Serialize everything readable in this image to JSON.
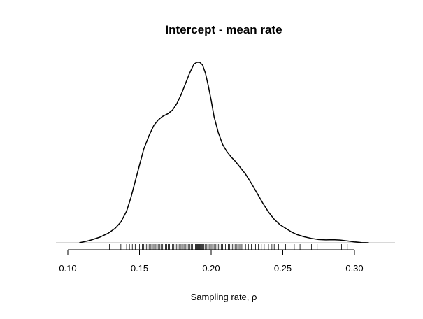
{
  "chart_data": {
    "type": "line",
    "title": "Intercept - mean rate",
    "xlabel": "Sampling rate, ρ",
    "ylabel": "",
    "xlim": [
      0.09,
      0.32
    ],
    "ylim": [
      0,
      1
    ],
    "x_ticks": [
      0.1,
      0.15,
      0.2,
      0.25,
      0.3
    ],
    "x_tick_labels": [
      "0.10",
      "0.15",
      "0.20",
      "0.25",
      "0.30"
    ],
    "grid": false,
    "legend": "none",
    "line_color": "#000000",
    "baseline_color": "#b0b0b0",
    "density": {
      "x": [
        0.108,
        0.115,
        0.122,
        0.128,
        0.133,
        0.137,
        0.141,
        0.144,
        0.147,
        0.15,
        0.153,
        0.157,
        0.16,
        0.163,
        0.166,
        0.17,
        0.173,
        0.176,
        0.179,
        0.182,
        0.185,
        0.188,
        0.19,
        0.192,
        0.194,
        0.196,
        0.198,
        0.2,
        0.202,
        0.205,
        0.208,
        0.211,
        0.214,
        0.217,
        0.22,
        0.224,
        0.228,
        0.232,
        0.236,
        0.24,
        0.244,
        0.248,
        0.252,
        0.256,
        0.26,
        0.265,
        0.27,
        0.275,
        0.28,
        0.285,
        0.29,
        0.295,
        0.3,
        0.305,
        0.31
      ],
      "y": [
        0.0,
        0.012,
        0.03,
        0.052,
        0.08,
        0.115,
        0.175,
        0.25,
        0.34,
        0.43,
        0.52,
        0.6,
        0.65,
        0.68,
        0.7,
        0.716,
        0.735,
        0.77,
        0.82,
        0.88,
        0.94,
        0.99,
        1.0,
        1.0,
        0.985,
        0.94,
        0.87,
        0.79,
        0.7,
        0.61,
        0.545,
        0.505,
        0.475,
        0.45,
        0.42,
        0.38,
        0.33,
        0.275,
        0.22,
        0.17,
        0.13,
        0.1,
        0.08,
        0.06,
        0.045,
        0.033,
        0.024,
        0.018,
        0.016,
        0.017,
        0.015,
        0.01,
        0.005,
        0.001,
        0.0
      ]
    },
    "rug": [
      0.128,
      0.129,
      0.137,
      0.141,
      0.143,
      0.145,
      0.147,
      0.149,
      0.15,
      0.151,
      0.152,
      0.153,
      0.154,
      0.155,
      0.156,
      0.157,
      0.158,
      0.159,
      0.16,
      0.161,
      0.162,
      0.163,
      0.164,
      0.165,
      0.166,
      0.167,
      0.168,
      0.169,
      0.17,
      0.171,
      0.172,
      0.173,
      0.174,
      0.175,
      0.176,
      0.177,
      0.178,
      0.179,
      0.18,
      0.181,
      0.182,
      0.183,
      0.184,
      0.185,
      0.186,
      0.187,
      0.188,
      0.189,
      0.19,
      0.1905,
      0.191,
      0.1915,
      0.192,
      0.1925,
      0.193,
      0.1935,
      0.194,
      0.1945,
      0.195,
      0.196,
      0.197,
      0.198,
      0.199,
      0.2,
      0.201,
      0.202,
      0.203,
      0.204,
      0.205,
      0.206,
      0.207,
      0.208,
      0.209,
      0.21,
      0.211,
      0.212,
      0.213,
      0.214,
      0.215,
      0.216,
      0.217,
      0.218,
      0.219,
      0.22,
      0.221,
      0.222,
      0.224,
      0.226,
      0.228,
      0.23,
      0.231,
      0.233,
      0.235,
      0.237,
      0.24,
      0.242,
      0.243,
      0.244,
      0.247,
      0.252,
      0.258,
      0.262,
      0.27,
      0.274,
      0.291,
      0.295
    ]
  }
}
